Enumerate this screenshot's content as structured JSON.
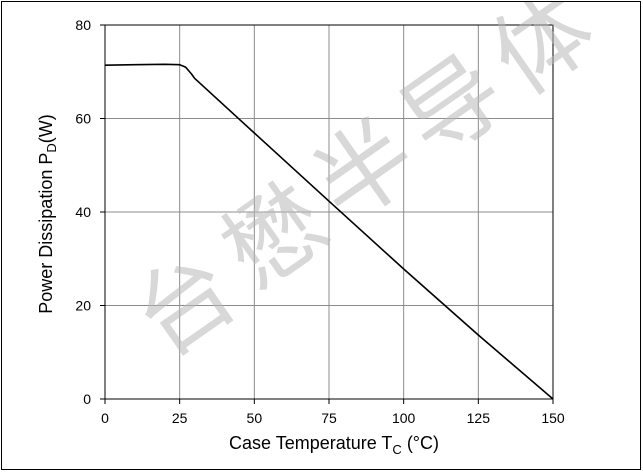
{
  "chart_data": {
    "type": "line",
    "title": "",
    "xlabel": "Case Temperature T",
    "xlabel_sub": "C",
    "xlabel_unit": " (°C)",
    "ylabel": "Power Dissipation P",
    "ylabel_sub": "D",
    "ylabel_unit": "(W)",
    "xlim": [
      0,
      150
    ],
    "ylim": [
      0,
      80
    ],
    "xticks": [
      0,
      25,
      50,
      75,
      100,
      125,
      150
    ],
    "yticks": [
      0,
      20,
      40,
      60,
      80
    ],
    "grid": true,
    "series": [
      {
        "x": [
          0,
          10,
          20,
          25,
          27,
          29,
          30,
          50,
          75,
          100,
          125,
          150
        ],
        "y": [
          71.4,
          71.5,
          71.6,
          71.5,
          71.0,
          69.5,
          68.6,
          56.9,
          42.3,
          27.8,
          13.7,
          0
        ],
        "color": "#000000"
      }
    ]
  },
  "watermark": {
    "text": "台懋半导体 (",
    "color": "#b8b8b8"
  }
}
